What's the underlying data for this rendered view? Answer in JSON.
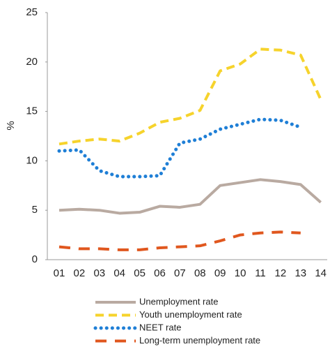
{
  "chart_data": {
    "type": "line",
    "y_label": "%",
    "categories": [
      "01",
      "02",
      "03",
      "04",
      "05",
      "06",
      "07",
      "08",
      "09",
      "10",
      "11",
      "12",
      "13",
      "14"
    ],
    "series": [
      {
        "name": "Unemployment rate",
        "color": "#b9aaa1",
        "style": "solid",
        "values": [
          5.0,
          5.1,
          5.0,
          4.7,
          4.8,
          5.4,
          5.3,
          5.6,
          7.5,
          7.8,
          8.1,
          7.9,
          7.6,
          5.8
        ]
      },
      {
        "name": "Youth unemployment rate",
        "color": "#f6d32c",
        "style": "dashed",
        "values": [
          11.7,
          12.0,
          12.2,
          12.0,
          12.8,
          13.9,
          14.3,
          15.1,
          19.1,
          19.8,
          21.3,
          21.2,
          20.7,
          16.2
        ]
      },
      {
        "name": "NEET rate",
        "color": "#1f7fd6",
        "style": "dotted",
        "values": [
          11.0,
          11.1,
          9.0,
          8.4,
          8.4,
          8.5,
          11.8,
          12.2,
          13.2,
          13.7,
          14.2,
          14.1,
          13.4,
          null
        ]
      },
      {
        "name": "Long-term unemployment rate",
        "color": "#e0571e",
        "style": "long-dashed",
        "values": [
          1.3,
          1.1,
          1.1,
          1.0,
          1.0,
          1.2,
          1.3,
          1.4,
          1.9,
          2.5,
          2.7,
          2.8,
          2.7,
          null
        ]
      }
    ],
    "ylim": [
      0,
      25
    ],
    "yticks": [
      0,
      5,
      10,
      15,
      20,
      25
    ],
    "grid": false,
    "legend": "bottom"
  }
}
